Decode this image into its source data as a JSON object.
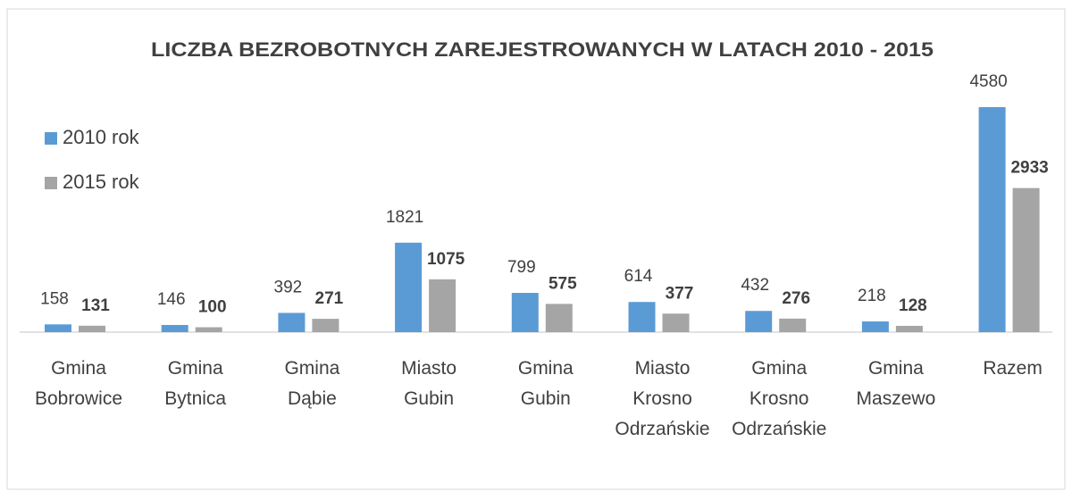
{
  "chart_data": {
    "type": "bar",
    "title": "LICZBA BEZROBOTNYCH ZAREJESTROWANYCH W LATACH 2010 - 2015",
    "categories": [
      [
        "Gmina",
        "Bobrowice"
      ],
      [
        "Gmina",
        "Bytnica"
      ],
      [
        "Gmina",
        "Dąbie"
      ],
      [
        "Miasto",
        "Gubin"
      ],
      [
        "Gmina",
        "Gubin"
      ],
      [
        "Miasto",
        "Krosno",
        "Odrzańskie"
      ],
      [
        "Gmina",
        "Krosno",
        "Odrzańskie"
      ],
      [
        "Gmina",
        "Maszewo"
      ],
      [
        "Razem"
      ]
    ],
    "series": [
      {
        "name": "2010 rok",
        "color": "#5b9bd5",
        "values": [
          158,
          146,
          392,
          1821,
          799,
          614,
          432,
          218,
          4580
        ]
      },
      {
        "name": "2015 rok",
        "color": "#a5a5a5",
        "values": [
          131,
          100,
          271,
          1075,
          575,
          377,
          276,
          128,
          2933
        ]
      }
    ],
    "legend": "left"
  }
}
